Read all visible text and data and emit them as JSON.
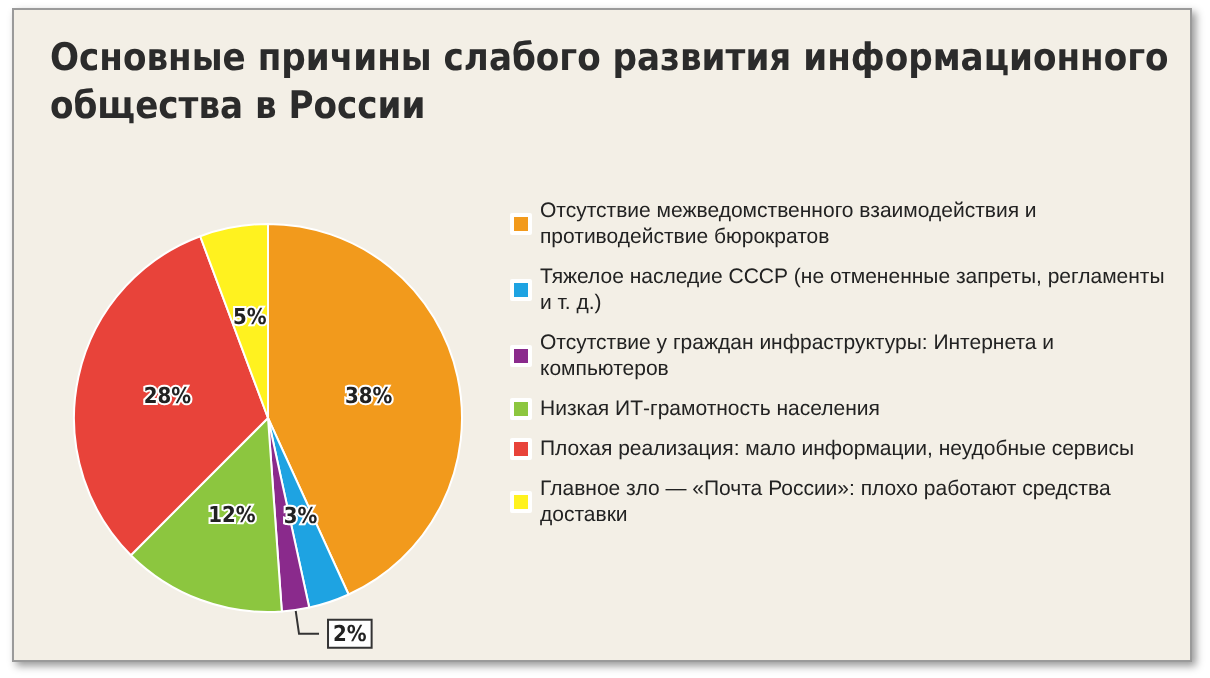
{
  "chart_data": {
    "type": "pie",
    "title": "Основные причины слабого развития информационного\nобщества в России",
    "categories": [
      "Отсутствие межведомственного взаимодействия и противодействие бюрократов",
      "Тяжелое наследие СССР (не отмененные запреты, регламенты и т. д.)",
      "Отсутствие у граждан инфраструктуры: Интернета и компьютеров",
      "Низкая ИТ-грамотность населения",
      "Плохая реализация: мало информации, неудобные сервисы",
      "Главное зло — «Почта России»: плохо работают средства доставки"
    ],
    "values": [
      38,
      3,
      2,
      12,
      28,
      5
    ],
    "value_labels": [
      "38%",
      "3%",
      "2%",
      "12%",
      "28%",
      "5%"
    ],
    "colors": [
      "#f29a1c",
      "#1ea3e2",
      "#8a2a8c",
      "#8cc63f",
      "#e8433a",
      "#fff21f"
    ],
    "legend": "right"
  }
}
